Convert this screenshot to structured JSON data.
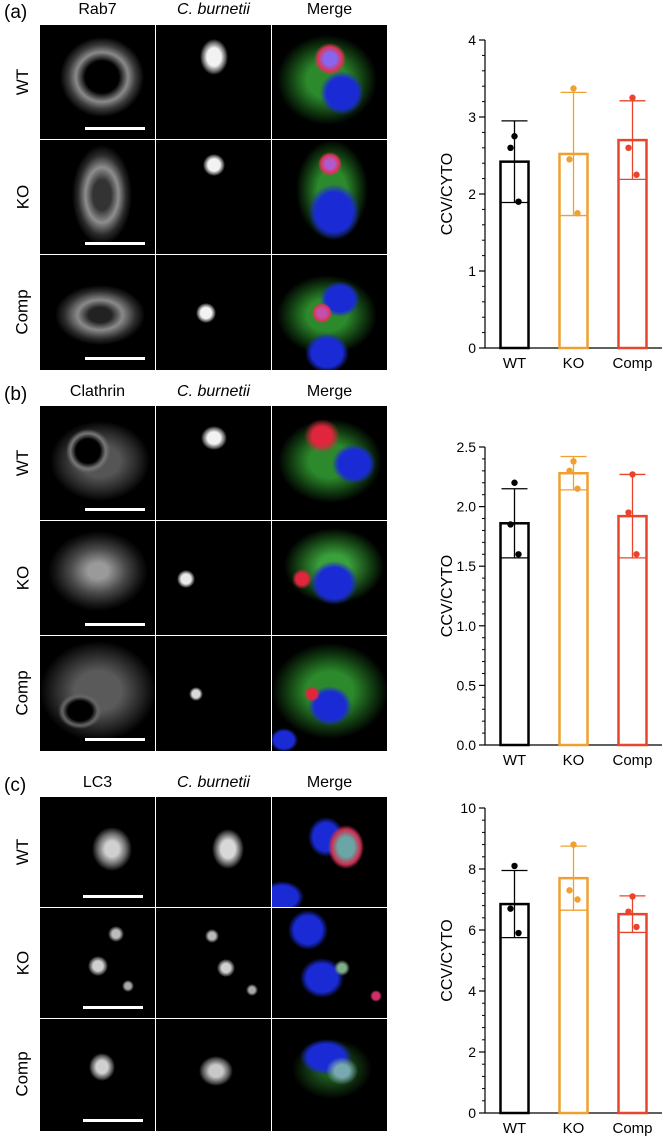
{
  "figure": {
    "columns": [
      "Rab7",
      "C. burnetii",
      "Merge"
    ],
    "panels": [
      {
        "letter": "(a)",
        "columns": [
          {
            "label": "Rab7",
            "italic": false
          },
          {
            "label": "C. burnetii",
            "italic": true
          },
          {
            "label": "Merge",
            "italic": false
          }
        ],
        "rows": [
          "WT",
          "KO",
          "Comp"
        ]
      },
      {
        "letter": "(b)",
        "columns": [
          {
            "label": "Clathrin",
            "italic": false
          },
          {
            "label": "C. burnetii",
            "italic": true
          },
          {
            "label": "Merge",
            "italic": false
          }
        ],
        "rows": [
          "WT",
          "KO",
          "Comp"
        ]
      },
      {
        "letter": "(c)",
        "columns": [
          {
            "label": "LC3",
            "italic": false
          },
          {
            "label": "C. burnetii",
            "italic": true
          },
          {
            "label": "Merge",
            "italic": false
          }
        ],
        "rows": [
          "WT",
          "KO",
          "Comp"
        ]
      }
    ]
  },
  "chart_data": [
    {
      "type": "bar",
      "panel": "(a)",
      "categories": [
        "WT",
        "KO",
        "Comp"
      ],
      "values": [
        2.42,
        2.52,
        2.7
      ],
      "error": [
        0.53,
        0.8,
        0.51
      ],
      "points": [
        [
          2.75,
          2.6,
          1.9
        ],
        [
          3.37,
          2.45,
          1.75
        ],
        [
          3.25,
          2.6,
          2.25
        ]
      ],
      "colors": [
        "#000000",
        "#f0a030",
        "#e8452c"
      ],
      "xlabel": "",
      "ylabel": "CCV/CYTO",
      "ylim": [
        0,
        4
      ],
      "yticks": [
        "0",
        "1",
        "2",
        "3",
        "4"
      ],
      "grid": false
    },
    {
      "type": "bar",
      "panel": "(b)",
      "categories": [
        "WT",
        "KO",
        "Comp"
      ],
      "values": [
        1.86,
        2.28,
        1.92
      ],
      "error": [
        0.29,
        0.14,
        0.35
      ],
      "points": [
        [
          2.2,
          1.85,
          1.6
        ],
        [
          2.38,
          2.3,
          2.15
        ],
        [
          2.27,
          1.95,
          1.6
        ]
      ],
      "colors": [
        "#000000",
        "#f0a030",
        "#e8452c"
      ],
      "xlabel": "",
      "ylabel": "CCV/CYTO",
      "ylim": [
        0,
        2.5
      ],
      "yticks": [
        "0.0",
        "0.5",
        "1.0",
        "1.5",
        "2.0",
        "2.5"
      ],
      "grid": false
    },
    {
      "type": "bar",
      "panel": "(c)",
      "categories": [
        "WT",
        "KO",
        "Comp"
      ],
      "values": [
        6.85,
        7.7,
        6.52
      ],
      "error": [
        1.1,
        1.05,
        0.6
      ],
      "points": [
        [
          8.1,
          6.7,
          5.9
        ],
        [
          8.8,
          7.3,
          7.0
        ],
        [
          7.1,
          6.6,
          6.1
        ]
      ],
      "colors": [
        "#000000",
        "#f0a030",
        "#e8452c"
      ],
      "xlabel": "",
      "ylabel": "CCV/CYTO",
      "ylim": [
        0,
        10
      ],
      "yticks": [
        "0",
        "2",
        "4",
        "6",
        "8",
        "10"
      ],
      "grid": false
    }
  ]
}
